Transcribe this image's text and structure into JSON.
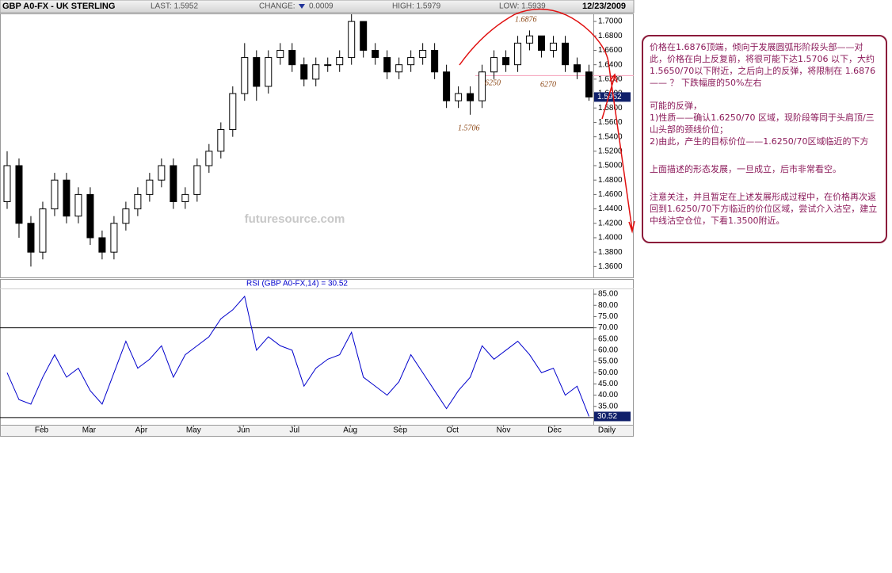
{
  "header": {
    "title": "GBP A0-FX - UK STERLING",
    "last": "LAST: 1.5952",
    "change_label": "CHANGE:",
    "change": "0.0009",
    "high": "HIGH: 1.5979",
    "low": "LOW: 1.5939",
    "date": "12/23/2009"
  },
  "chart_data": [
    {
      "type": "candlestick",
      "open": [
        1.45,
        1.5,
        1.42,
        1.38,
        1.44,
        1.48,
        1.43,
        1.46,
        1.4,
        1.38,
        1.42,
        1.44,
        1.46,
        1.48,
        1.5,
        1.45,
        1.46,
        1.5,
        1.52,
        1.55,
        1.6,
        1.65,
        1.61,
        1.65,
        1.66,
        1.64,
        1.62,
        1.64,
        1.64,
        1.65,
        1.7,
        1.66,
        1.65,
        1.63,
        1.64,
        1.65,
        1.66,
        1.63,
        1.59,
        1.6,
        1.59,
        1.63,
        1.65,
        1.64,
        1.67,
        1.68,
        1.66,
        1.67,
        1.64,
        1.63
      ],
      "high": [
        1.52,
        1.51,
        1.43,
        1.45,
        1.49,
        1.49,
        1.47,
        1.47,
        1.41,
        1.43,
        1.45,
        1.47,
        1.49,
        1.51,
        1.51,
        1.47,
        1.51,
        1.53,
        1.56,
        1.61,
        1.67,
        1.66,
        1.66,
        1.67,
        1.67,
        1.65,
        1.65,
        1.65,
        1.66,
        1.71,
        1.7,
        1.67,
        1.66,
        1.65,
        1.66,
        1.67,
        1.67,
        1.64,
        1.61,
        1.61,
        1.64,
        1.66,
        1.66,
        1.68,
        1.6876,
        1.68,
        1.68,
        1.68,
        1.65,
        1.64
      ],
      "low": [
        1.44,
        1.4,
        1.36,
        1.37,
        1.43,
        1.42,
        1.42,
        1.39,
        1.37,
        1.37,
        1.41,
        1.43,
        1.45,
        1.47,
        1.44,
        1.44,
        1.45,
        1.49,
        1.51,
        1.54,
        1.59,
        1.59,
        1.6,
        1.64,
        1.63,
        1.61,
        1.61,
        1.63,
        1.63,
        1.64,
        1.65,
        1.64,
        1.62,
        1.62,
        1.63,
        1.64,
        1.62,
        1.58,
        1.58,
        1.5706,
        1.58,
        1.62,
        1.63,
        1.63,
        1.66,
        1.65,
        1.65,
        1.63,
        1.62,
        1.59
      ],
      "close": [
        1.5,
        1.42,
        1.38,
        1.44,
        1.48,
        1.43,
        1.46,
        1.4,
        1.38,
        1.42,
        1.44,
        1.46,
        1.48,
        1.5,
        1.45,
        1.46,
        1.5,
        1.52,
        1.55,
        1.6,
        1.65,
        1.61,
        1.65,
        1.66,
        1.64,
        1.62,
        1.64,
        1.64,
        1.65,
        1.7,
        1.66,
        1.65,
        1.63,
        1.64,
        1.65,
        1.66,
        1.63,
        1.59,
        1.6,
        1.59,
        1.63,
        1.65,
        1.64,
        1.67,
        1.68,
        1.66,
        1.67,
        1.64,
        1.63,
        1.5952
      ],
      "up_color": "#ffffff",
      "down_color": "#000000",
      "ylim": [
        1.345,
        1.71
      ],
      "yticks": [
        {
          "value": 1.36,
          "label": "1.3600"
        },
        {
          "value": 1.38,
          "label": "1.3800"
        },
        {
          "value": 1.4,
          "label": "1.4000"
        },
        {
          "value": 1.42,
          "label": "1.4200"
        },
        {
          "value": 1.44,
          "label": "1.4400"
        },
        {
          "value": 1.46,
          "label": "1.4600"
        },
        {
          "value": 1.48,
          "label": "1.4800"
        },
        {
          "value": 1.5,
          "label": "1.5000"
        },
        {
          "value": 1.52,
          "label": "1.5200"
        },
        {
          "value": 1.54,
          "label": "1.5400"
        },
        {
          "value": 1.56,
          "label": "1.5600"
        },
        {
          "value": 1.58,
          "label": "1.5800"
        },
        {
          "value": 1.6,
          "label": "1.6000"
        },
        {
          "value": 1.62,
          "label": "1.6200"
        },
        {
          "value": 1.64,
          "label": "1.6400"
        },
        {
          "value": 1.66,
          "label": "1.6600"
        },
        {
          "value": 1.68,
          "label": "1.6800"
        },
        {
          "value": 1.7,
          "label": "1.7000"
        }
      ],
      "reference_line": 1.625,
      "reference_color": "#f4a0b8",
      "annotations": [
        "1.6876",
        "6250",
        "6270",
        "1.5706"
      ],
      "watermark": "futuresource.com"
    },
    {
      "type": "line",
      "title": "RSI (GBP A0-FX,14) = 30.52",
      "color": "#0000cc",
      "values": [
        50,
        38,
        36,
        48,
        58,
        48,
        52,
        42,
        36,
        50,
        64,
        52,
        56,
        62,
        48,
        58,
        62,
        66,
        74,
        78,
        84,
        60,
        66,
        62,
        60,
        44,
        52,
        56,
        58,
        68,
        48,
        44,
        40,
        46,
        58,
        50,
        42,
        34,
        42,
        48,
        62,
        56,
        60,
        64,
        58,
        50,
        52,
        40,
        44,
        30.52
      ],
      "ylim": [
        26.8,
        86.8
      ],
      "yticks": [
        {
          "value": 30,
          "label": "30.00"
        },
        {
          "value": 35,
          "label": "35.00"
        },
        {
          "value": 40,
          "label": "40.00"
        },
        {
          "value": 45,
          "label": "45.00"
        },
        {
          "value": 50,
          "label": "50.00"
        },
        {
          "value": 55,
          "label": "55.00"
        },
        {
          "value": 60,
          "label": "60.00"
        },
        {
          "value": 65,
          "label": "65.00"
        },
        {
          "value": 70,
          "label": "70.00"
        },
        {
          "value": 75,
          "label": "75.00"
        },
        {
          "value": 80,
          "label": "80.00"
        },
        {
          "value": 85,
          "label": "85.00"
        }
      ],
      "levels": [
        70,
        30
      ],
      "xlim": [
        -0.6,
        49.3
      ],
      "xticks": [
        {
          "value": 2.9,
          "label": "Feb"
        },
        {
          "value": 6.9,
          "label": "Mar"
        },
        {
          "value": 11.3,
          "label": "Apr"
        },
        {
          "value": 15.7,
          "label": "May"
        },
        {
          "value": 19.9,
          "label": "Jun"
        },
        {
          "value": 24.2,
          "label": "Jul"
        },
        {
          "value": 28.9,
          "label": "Aug"
        },
        {
          "value": 33.1,
          "label": "Sep"
        },
        {
          "value": 37.5,
          "label": "Oct"
        },
        {
          "value": 41.8,
          "label": "Nov"
        },
        {
          "value": 46.1,
          "label": "Dec"
        }
      ],
      "x_label": "Daily"
    }
  ],
  "note": [
    "价格在1.6876顶端，倾向于发展圆弧形阶段头部——对此，价格在向上反复前，将很可能下达1.5706 以下，大约1.5650/70以下附近，之后向上的反弹，将限制在 1.6876 —— ？ 下跌幅度的50%左右",
    "可能的反弹，",
    "1)性质——确认1.6250/70 区域，现阶段等同于头肩顶/三山头部的颈线价位；",
    "2)由此，产生的目标价位——1.6250/70区域临近的下方",
    "上面描述的形态发展，一旦成立，后市非常看空。",
    "注意关注，并且暂定在上述发展形成过程中，在价格再次返回到1.6250/70下方临近的价位区域，尝试介入沽空，建立中线沽空仓位，下看1.3500附近。"
  ]
}
